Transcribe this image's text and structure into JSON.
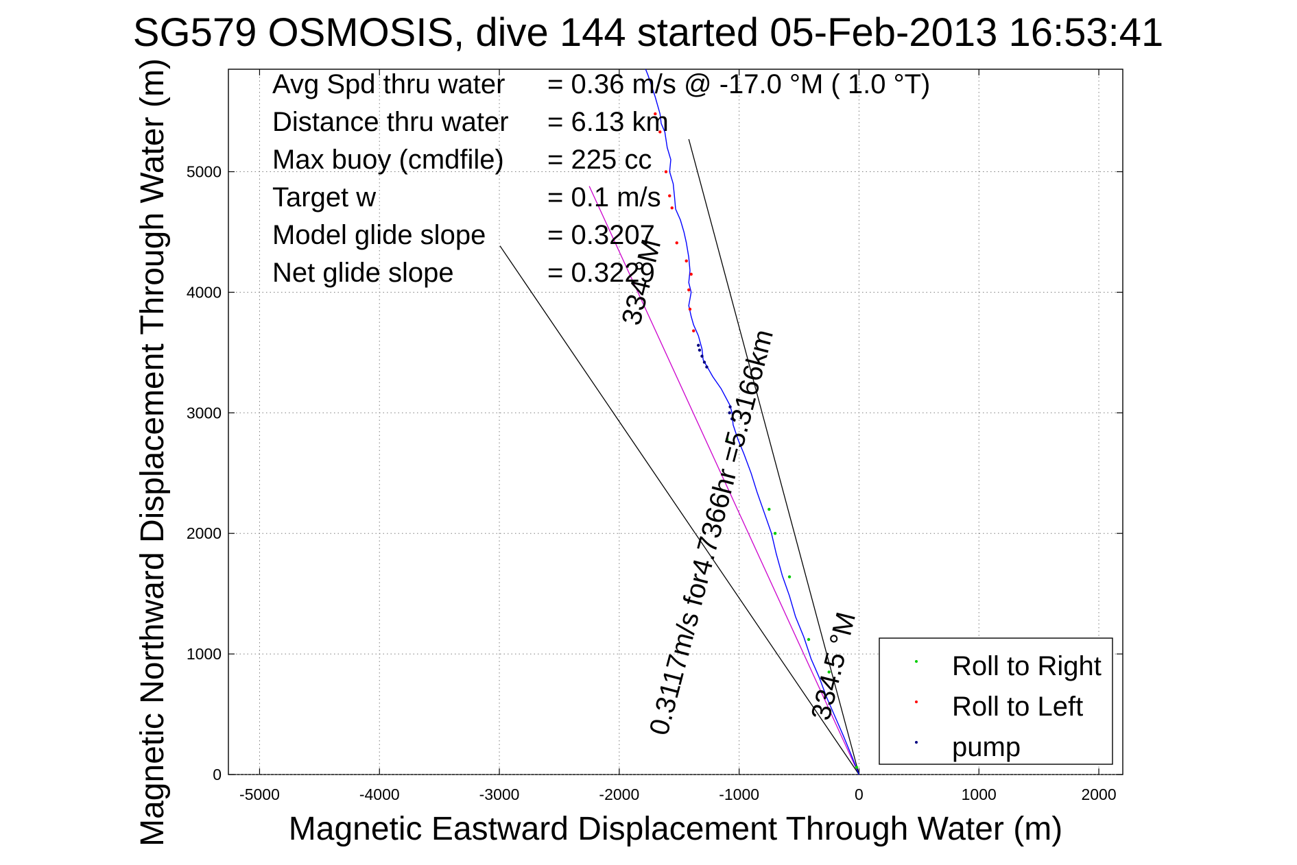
{
  "chart_data": {
    "type": "line",
    "title": "SG579 OSMOSIS, dive 144 started 05-Feb-2013 16:53:41",
    "xlabel": "Magnetic Eastward Displacement Through Water (m)",
    "ylabel": "Magnetic Northward Displacement Through Water (m)",
    "xlim": [
      -5260,
      2200
    ],
    "ylim": [
      0,
      5850
    ],
    "xticks": [
      -5000,
      -4000,
      -3000,
      -2000,
      -1000,
      0,
      1000,
      2000
    ],
    "yticks": [
      0,
      1000,
      2000,
      3000,
      4000,
      5000
    ],
    "xtick_labels": [
      "-5000",
      "-4000",
      "-3000",
      "-2000",
      "-1000",
      "0",
      "1000",
      "2000"
    ],
    "ytick_labels": [
      "0",
      "1000",
      "2000",
      "3000",
      "4000",
      "5000"
    ],
    "grid": true,
    "legend_position": "bottom-right",
    "colors": {
      "track": "#0000ff",
      "roll_right": "#00cc00",
      "roll_left": "#ff0000",
      "pump": "#000080",
      "glide_line": "#cc00cc",
      "lines": "#000000"
    },
    "track": {
      "x": [
        0,
        -60,
        -130,
        -200,
        -270,
        -330,
        -400,
        -460,
        -530,
        -580,
        -640,
        -690,
        -730,
        -790,
        -850,
        -900,
        -960,
        -1010,
        -1050,
        -1060,
        -1075,
        -1150,
        -1220,
        -1260,
        -1300,
        -1310,
        -1340,
        -1380,
        -1400,
        -1420,
        -1400,
        -1420,
        -1410,
        -1420,
        -1440,
        -1460,
        -1490,
        -1530,
        -1540,
        -1550,
        -1580,
        -1570,
        -1600,
        -1620,
        -1650,
        -1660,
        -1680,
        -1700,
        -1720,
        -1740,
        -1760,
        -1780
      ],
      "y": [
        0,
        150,
        320,
        480,
        640,
        800,
        960,
        1140,
        1310,
        1480,
        1650,
        1830,
        2000,
        2170,
        2340,
        2500,
        2660,
        2780,
        2900,
        3000,
        3060,
        3200,
        3300,
        3370,
        3440,
        3530,
        3640,
        3730,
        3800,
        3890,
        4000,
        4080,
        4180,
        4290,
        4410,
        4500,
        4600,
        4690,
        4800,
        4900,
        5000,
        5100,
        5200,
        5330,
        5400,
        5480,
        5550,
        5620,
        5680,
        5740,
        5800,
        5850
      ]
    },
    "markers": {
      "roll_right": {
        "x": [
          -20,
          -250,
          -420,
          -580,
          -700,
          -750,
          -1100
        ],
        "y": [
          60,
          850,
          1120,
          1640,
          2000,
          2200,
          2780
        ]
      },
      "roll_left": {
        "x": [
          -1380,
          -1410,
          -1420,
          -1400,
          -1440,
          -1520,
          -1560,
          -1580,
          -1610,
          -1660,
          -1700
        ],
        "y": [
          3680,
          3860,
          4020,
          4150,
          4260,
          4410,
          4700,
          4800,
          5000,
          5330,
          5480
        ]
      },
      "pump": {
        "x": [
          -1060,
          -1080,
          -1075,
          -1270,
          -1290,
          -1310,
          -1330,
          -1340
        ],
        "y": [
          2950,
          3000,
          3050,
          3380,
          3420,
          3470,
          3520,
          3560
        ]
      }
    },
    "lines": {
      "glide_line": {
        "x": [
          0,
          -2250
        ],
        "y": [
          0,
          4880
        ]
      },
      "bracket_line_1": {
        "x": [
          0,
          -1420
        ],
        "y": [
          0,
          5270
        ]
      },
      "bracket_line_2": {
        "x": [
          0,
          -2995
        ],
        "y": [
          0,
          4385
        ]
      }
    },
    "stats": [
      {
        "label": "Avg Spd thru water",
        "value": "=  0.36 m/s @ -17.0 °M (  1.0 °T)"
      },
      {
        "label": "Distance thru water",
        "value": "=  6.13 km"
      },
      {
        "label": "Max buoy (cmdfile)",
        "value": "= 225 cc"
      },
      {
        "label": "Target w",
        "value": "= 0.1 m/s"
      },
      {
        "label": "Model glide slope",
        "value": "= 0.3207"
      },
      {
        "label": "Net glide slope",
        "value": "= 0.3229"
      }
    ],
    "annotations": {
      "main_line": "0.3117m/s for4.7366hr =5.3166km",
      "upper_heading": "334 °M",
      "lower_heading": "334.5 °M"
    },
    "legend": [
      "Roll to Right",
      "Roll to Left",
      "pump"
    ]
  }
}
